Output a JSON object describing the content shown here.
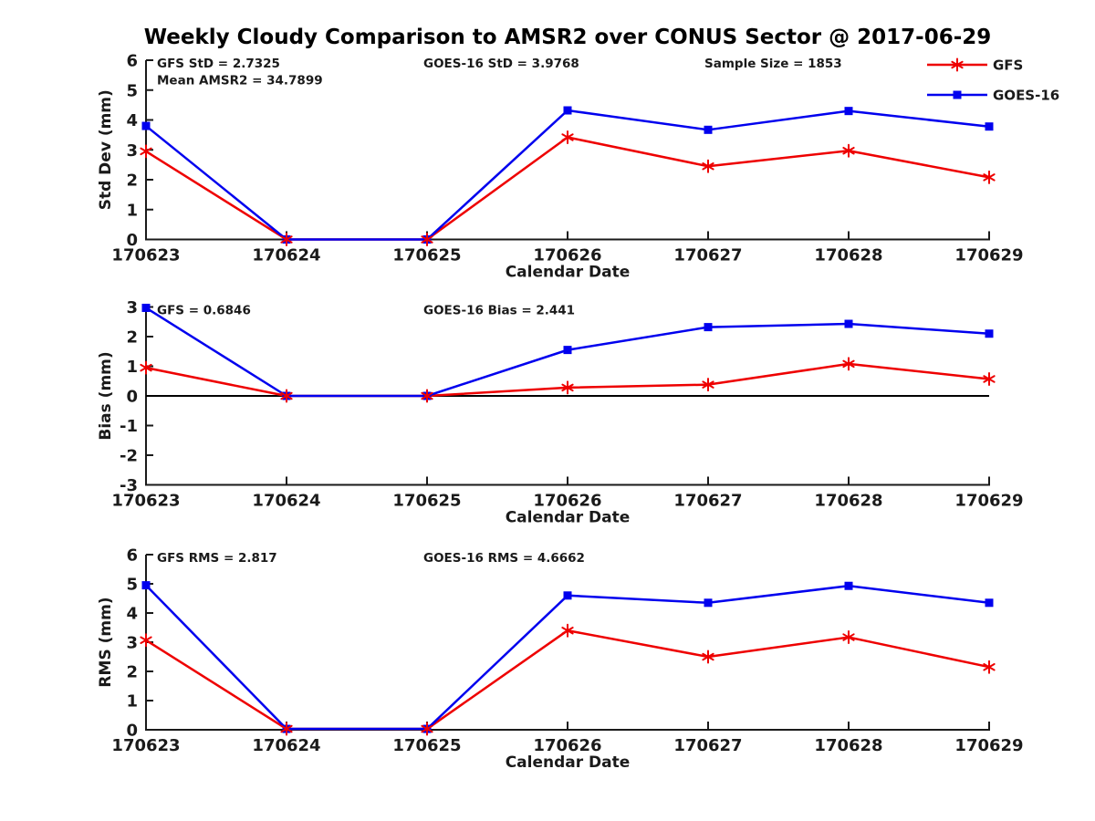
{
  "title": "Weekly Cloudy Comparison to AMSR2 over CONUS Sector @ 2017-06-29",
  "colors": {
    "gfs_red": "#ee0000",
    "goes_blue": "#0000ee",
    "axis": "#1a1a1a",
    "text": "#1a1a1a",
    "zero_line": "#000000"
  },
  "legend": {
    "position": "top-right-outside",
    "entries": [
      {
        "label": "GFS",
        "color": "#ee0000",
        "marker": "star"
      },
      {
        "label": "GOES-16",
        "color": "#0000ee",
        "marker": "square"
      }
    ]
  },
  "chart_data": [
    {
      "type": "line",
      "name": "std-dev",
      "xlabel": "Calendar Date",
      "ylabel": "Std Dev (mm)",
      "categories": [
        "170623",
        "170624",
        "170625",
        "170626",
        "170627",
        "170628",
        "170629"
      ],
      "ylim": [
        0,
        6
      ],
      "yticks": [
        0,
        1,
        2,
        3,
        4,
        5,
        6
      ],
      "grid": false,
      "zero_line": false,
      "legend": true,
      "series": [
        {
          "name": "GFS",
          "color": "#ee0000",
          "marker": "star",
          "values": [
            2.95,
            0,
            0,
            3.42,
            2.45,
            2.97,
            2.08
          ]
        },
        {
          "name": "GOES-16",
          "color": "#0000ee",
          "marker": "square",
          "values": [
            3.8,
            0,
            0,
            4.32,
            3.67,
            4.3,
            3.78
          ]
        }
      ],
      "annotations": [
        {
          "text": "GFS StD = 2.7325",
          "slot": "left"
        },
        {
          "text": "Mean AMSR2 = 34.7899",
          "slot": "left2"
        },
        {
          "text": "GOES-16 StD = 3.9768",
          "slot": "center"
        },
        {
          "text": "Sample Size = 1853",
          "slot": "right"
        }
      ]
    },
    {
      "type": "line",
      "name": "bias",
      "xlabel": "Calendar Date",
      "ylabel": "Bias (mm)",
      "categories": [
        "170623",
        "170624",
        "170625",
        "170626",
        "170627",
        "170628",
        "170629"
      ],
      "ylim": [
        -3,
        3
      ],
      "yticks": [
        -3,
        -2,
        -1,
        0,
        1,
        2,
        3
      ],
      "grid": false,
      "zero_line": true,
      "legend": false,
      "series": [
        {
          "name": "GFS",
          "color": "#ee0000",
          "marker": "star",
          "values": [
            0.95,
            0,
            0,
            0.28,
            0.38,
            1.08,
            0.57
          ]
        },
        {
          "name": "GOES-16",
          "color": "#0000ee",
          "marker": "square",
          "values": [
            2.97,
            0,
            0,
            1.55,
            2.32,
            2.43,
            2.1
          ]
        }
      ],
      "annotations": [
        {
          "text": "GFS = 0.6846",
          "slot": "left"
        },
        {
          "text": "GOES-16 Bias  = 2.441",
          "slot": "center"
        }
      ]
    },
    {
      "type": "line",
      "name": "rms",
      "xlabel": "Calendar Date",
      "ylabel": "RMS (mm)",
      "categories": [
        "170623",
        "170624",
        "170625",
        "170626",
        "170627",
        "170628",
        "170629"
      ],
      "ylim": [
        0,
        6
      ],
      "yticks": [
        0,
        1,
        2,
        3,
        4,
        5,
        6
      ],
      "grid": false,
      "zero_line": false,
      "legend": false,
      "series": [
        {
          "name": "GFS",
          "color": "#ee0000",
          "marker": "star",
          "values": [
            3.07,
            0.03,
            0.03,
            3.4,
            2.5,
            3.17,
            2.15
          ]
        },
        {
          "name": "GOES-16",
          "color": "#0000ee",
          "marker": "square",
          "values": [
            4.95,
            0.03,
            0.03,
            4.6,
            4.35,
            4.93,
            4.35
          ]
        }
      ],
      "annotations": [
        {
          "text": "GFS RMS = 2.817",
          "slot": "left"
        },
        {
          "text": "GOES-16 RMS = 4.6662",
          "slot": "center"
        }
      ]
    }
  ]
}
